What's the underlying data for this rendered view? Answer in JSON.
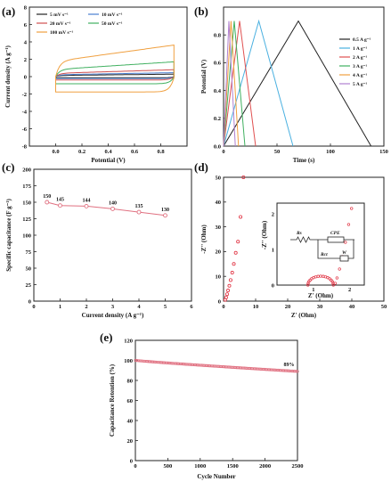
{
  "panels": {
    "a": {
      "label": "(a)",
      "chart_data": {
        "type": "line",
        "xlabel": "Potential (V)",
        "ylabel": "Current density (A g⁻¹)",
        "xlim": [
          -0.2,
          1.0
        ],
        "ylim": [
          -8,
          8
        ],
        "xticks": [
          "0.0",
          "0.2",
          "0.4",
          "0.6",
          "0.8"
        ],
        "xtick_values": [
          0,
          0.2,
          0.4,
          0.6,
          0.8
        ],
        "yticks": [
          "-8",
          "-6",
          "-4",
          "-2",
          "0",
          "2",
          "4",
          "6",
          "8"
        ],
        "ytick_values": [
          -8,
          -6,
          -4,
          -2,
          0,
          2,
          4,
          6,
          8
        ],
        "legend_position": "top-left",
        "series": [
          {
            "name": "5 mV s⁻¹",
            "color": "#222222",
            "amp": 0.25,
            "slope": 0.2
          },
          {
            "name": "10 mV s⁻¹",
            "color": "#4a7fd0",
            "amp": 0.4,
            "slope": 0.3
          },
          {
            "name": "20 mV s⁻¹",
            "color": "#d05050",
            "amp": 0.7,
            "slope": 0.4
          },
          {
            "name": "50 mV s⁻¹",
            "color": "#40b060",
            "amp": 1.5,
            "slope": 1.0
          },
          {
            "name": "100 mV s⁻¹",
            "color": "#f0a040",
            "amp": 3.2,
            "slope": 1.7
          }
        ]
      }
    },
    "b": {
      "label": "(b)",
      "chart_data": {
        "type": "line",
        "xlabel": "Time (s)",
        "ylabel": "Potential (V)",
        "xlim": [
          0,
          150
        ],
        "ylim": [
          0,
          1.0
        ],
        "xticks": [
          "0",
          "50",
          "100",
          "150"
        ],
        "xtick_values": [
          0,
          50,
          100,
          150
        ],
        "yticks": [
          "0.0",
          "0.2",
          "0.4",
          "0.6",
          "0.8"
        ],
        "ytick_values": [
          0,
          0.2,
          0.4,
          0.6,
          0.8
        ],
        "vmax": 0.9,
        "legend_position": "top-right",
        "series": [
          {
            "name": "0.5 A g⁻¹",
            "color": "#222222",
            "t_peak": 70,
            "t_end": 138
          },
          {
            "name": "1 A g⁻¹",
            "color": "#4ab0e0",
            "t_peak": 33,
            "t_end": 65
          },
          {
            "name": "2 A g⁻¹",
            "color": "#e05050",
            "t_peak": 15,
            "t_end": 30
          },
          {
            "name": "3 A g⁻¹",
            "color": "#40b060",
            "t_peak": 10,
            "t_end": 20
          },
          {
            "name": "4 A g⁻¹",
            "color": "#f0a040",
            "t_peak": 7,
            "t_end": 14
          },
          {
            "name": "5 A g⁻¹",
            "color": "#b080d0",
            "t_peak": 5,
            "t_end": 11
          }
        ]
      }
    },
    "c": {
      "label": "(c)",
      "chart_data": {
        "type": "line",
        "xlabel": "Current density (A g⁻¹)",
        "ylabel": "Specific capacitance (F g⁻¹)",
        "xlim": [
          0,
          6
        ],
        "ylim": [
          0,
          200
        ],
        "xticks": [
          "0",
          "1",
          "2",
          "3",
          "4",
          "5",
          "6"
        ],
        "xtick_values": [
          0,
          1,
          2,
          3,
          4,
          5,
          6
        ],
        "yticks": [
          "0",
          "25",
          "50",
          "75",
          "100",
          "125",
          "150",
          "175",
          "200"
        ],
        "ytick_values": [
          0,
          25,
          50,
          75,
          100,
          125,
          150,
          175,
          200
        ],
        "color": "#e07080",
        "x": [
          0.5,
          1,
          2,
          3,
          4,
          5
        ],
        "y": [
          150,
          145,
          144,
          140,
          135,
          130
        ],
        "data_labels": [
          "150",
          "145",
          "144",
          "140",
          "135",
          "130"
        ]
      }
    },
    "d": {
      "label": "(d)",
      "chart_data": {
        "type": "scatter",
        "xlabel": "Z' (Ohm)",
        "ylabel": "-Z'' (Ohm)",
        "xlim": [
          0,
          50
        ],
        "ylim": [
          0,
          50
        ],
        "xticks": [
          "0",
          "10",
          "20",
          "30",
          "40",
          "50"
        ],
        "xtick_values": [
          0,
          10,
          20,
          30,
          40,
          50
        ],
        "yticks": [
          "0",
          "10",
          "20",
          "30",
          "40",
          "50"
        ],
        "ytick_values": [
          0,
          10,
          20,
          30,
          40,
          50
        ],
        "color": "#e03040",
        "x": [
          0.5,
          0.8,
          1.1,
          1.4,
          1.8,
          2.2,
          2.7,
          3.2,
          3.8,
          4.5,
          5.3,
          6.2
        ],
        "y": [
          0.5,
          1.5,
          2.8,
          4.3,
          6.2,
          8.5,
          11.5,
          15,
          19.5,
          24,
          34,
          50
        ],
        "inset": {
          "xlabel": "Z' (Ohm)",
          "ylabel": "-Z'' (Ohm)",
          "xticks": [
            "1",
            "2"
          ],
          "yticks": [
            "0",
            "1",
            "2"
          ],
          "circuit_labels": {
            "rs": "Rs",
            "cpe": "CPE",
            "rct": "Rct",
            "w": "W"
          }
        }
      }
    },
    "e": {
      "label": "(e)",
      "chart_data": {
        "type": "scatter",
        "xlabel": "Cycle Number",
        "ylabel": "Capacitance Retention (%)",
        "xlim": [
          0,
          2500
        ],
        "ylim": [
          0,
          120
        ],
        "xticks": [
          "0",
          "500",
          "1000",
          "1500",
          "2000",
          "2500"
        ],
        "xtick_values": [
          0,
          500,
          1000,
          1500,
          2000,
          2500
        ],
        "yticks": [
          "0",
          "20",
          "40",
          "60",
          "80",
          "100",
          "120"
        ],
        "ytick_values": [
          0,
          20,
          40,
          60,
          80,
          100,
          120
        ],
        "color": "#e07080",
        "start": 100,
        "end": 89,
        "annotation": "89%"
      }
    }
  }
}
